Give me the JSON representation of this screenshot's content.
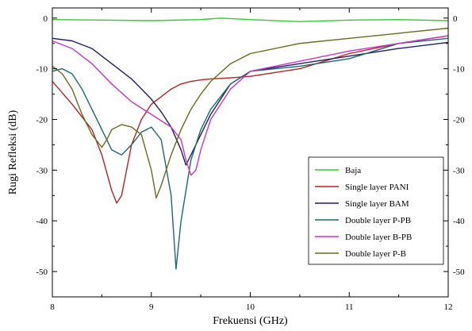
{
  "chart_data": {
    "type": "line",
    "title": "",
    "xlabel": "Frekuensi (GHz)",
    "ylabel": "Rugi Refleksi (dB)",
    "xlim": [
      8,
      12
    ],
    "ylim": [
      -55,
      2
    ],
    "xticks": [
      8,
      9,
      10,
      11,
      12
    ],
    "xtick_labels": [
      "8",
      "9",
      "10",
      "11",
      "12"
    ],
    "yticks": [
      0,
      -10,
      -20,
      -30,
      -40,
      -50
    ],
    "ytick_labels": [
      "0",
      "-10",
      "-20",
      "-30",
      "-40",
      "-50"
    ],
    "right_axis_mirrored": true,
    "grid": false,
    "legend_position": "bottom-right",
    "series": [
      {
        "name": "Baja",
        "color": "#33cc33",
        "x": [
          8.0,
          8.5,
          9.0,
          9.5,
          9.7,
          10.0,
          10.5,
          11.0,
          11.5,
          12.0
        ],
        "y": [
          -0.3,
          -0.4,
          -0.5,
          -0.3,
          0.0,
          -0.3,
          -0.7,
          -0.4,
          -0.3,
          -0.5
        ]
      },
      {
        "name": "Single layer PANI",
        "color": "#b32424",
        "x": [
          8.0,
          8.2,
          8.4,
          8.5,
          8.6,
          8.65,
          8.7,
          8.8,
          8.9,
          9.0,
          9.1,
          9.2,
          9.3,
          9.4,
          9.5,
          9.6,
          9.8,
          10.0,
          10.5,
          11.0,
          11.5,
          12.0
        ],
        "y": [
          -12.5,
          -17,
          -22,
          -27,
          -34,
          -36.5,
          -35,
          -25,
          -20,
          -17,
          -15.5,
          -14,
          -13,
          -12.5,
          -12.2,
          -12,
          -11.8,
          -11.5,
          -10,
          -7,
          -5,
          -3.5
        ]
      },
      {
        "name": "Single layer BAM",
        "color": "#1f1f66",
        "x": [
          8.0,
          8.2,
          8.4,
          8.6,
          8.8,
          9.0,
          9.1,
          9.2,
          9.3,
          9.35,
          9.4,
          9.5,
          9.6,
          9.8,
          10.0,
          10.5,
          11.0,
          11.5,
          12.0
        ],
        "y": [
          -4,
          -4.5,
          -6,
          -9,
          -12,
          -16,
          -18.5,
          -21.5,
          -26,
          -29,
          -27,
          -23,
          -19,
          -13,
          -10.5,
          -9,
          -7.5,
          -6,
          -4.8
        ]
      },
      {
        "name": "Double layer P-PB",
        "color": "#1a6a6a",
        "x": [
          8.0,
          8.1,
          8.2,
          8.3,
          8.4,
          8.5,
          8.6,
          8.7,
          8.8,
          8.9,
          9.0,
          9.1,
          9.2,
          9.25,
          9.3,
          9.4,
          9.5,
          9.6,
          9.8,
          10.0,
          10.5,
          11.0,
          11.5,
          12.0
        ],
        "y": [
          -10.5,
          -10,
          -11,
          -14,
          -18,
          -22,
          -26,
          -27,
          -25,
          -22.5,
          -21.5,
          -24,
          -35,
          -49.5,
          -40,
          -28,
          -22,
          -18,
          -13,
          -10.5,
          -9.5,
          -8,
          -5,
          -4
        ]
      },
      {
        "name": "Double layer B-PB",
        "color": "#cc33cc",
        "x": [
          8.0,
          8.2,
          8.4,
          8.6,
          8.8,
          9.0,
          9.2,
          9.3,
          9.35,
          9.4,
          9.45,
          9.5,
          9.6,
          9.8,
          10.0,
          10.5,
          11.0,
          11.5,
          12.0
        ],
        "y": [
          -4.5,
          -6,
          -9,
          -13,
          -16.5,
          -19,
          -21.5,
          -24,
          -28,
          -31,
          -30,
          -26,
          -20,
          -14,
          -10.5,
          -8.5,
          -6.5,
          -5,
          -3.5
        ]
      },
      {
        "name": "Double layer P-B",
        "color": "#6b6b1f",
        "x": [
          8.0,
          8.1,
          8.2,
          8.3,
          8.4,
          8.5,
          8.55,
          8.6,
          8.7,
          8.8,
          8.9,
          9.0,
          9.05,
          9.1,
          9.2,
          9.3,
          9.4,
          9.5,
          9.6,
          9.8,
          10.0,
          10.5,
          11.0,
          11.5,
          12.0
        ],
        "y": [
          -9.5,
          -11,
          -14,
          -19,
          -23,
          -25.5,
          -24,
          -22,
          -21,
          -21.5,
          -23,
          -30,
          -35.5,
          -33,
          -27,
          -22,
          -18,
          -15,
          -12.5,
          -9,
          -7,
          -5,
          -4,
          -3,
          -2
        ]
      }
    ]
  }
}
